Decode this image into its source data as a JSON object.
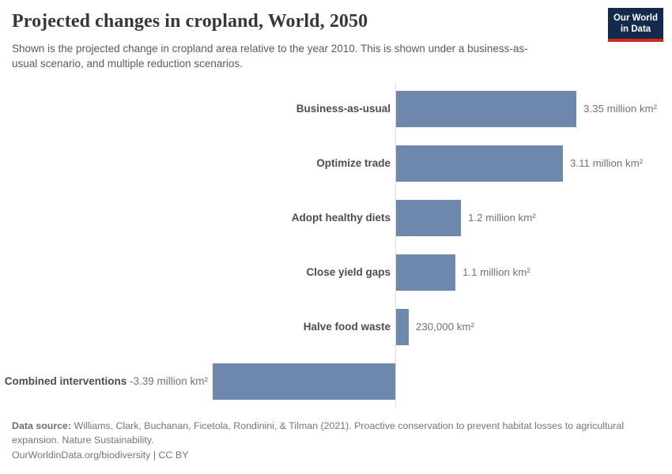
{
  "header": {
    "title": "Projected changes in cropland, World, 2050",
    "subtitle": "Shown is the projected change in cropland area relative to the year 2010. This is shown under a business-as-usual scenario, and multiple reduction scenarios.",
    "logo": {
      "line1": "Our World",
      "line2": "in Data"
    }
  },
  "chart_data": {
    "type": "bar",
    "orientation": "horizontal",
    "title": "Projected changes in cropland, World, 2050",
    "unit": "million km²",
    "baseline": 0,
    "xlim": [
      -3.39,
      3.35
    ],
    "grid": false,
    "legend": "none",
    "categories": [
      "Business-as-usual",
      "Optimize trade",
      "Adopt healthy diets",
      "Close yield gaps",
      "Halve food waste",
      "Combined interventions"
    ],
    "values": [
      3.35,
      3.11,
      1.2,
      1.1,
      0.23,
      -3.39
    ],
    "value_labels": [
      "3.35 million km²",
      "3.11 million km²",
      "1.2 million km²",
      "1.1 million km²",
      "230,000 km²",
      "-3.39 million km²"
    ],
    "colors": {
      "bar": "#6e88ad",
      "axis": "#dcdcdc",
      "category_label": "#4d4d4d",
      "value_label": "#737373"
    }
  },
  "footer": {
    "source_label": "Data source:",
    "source_text": " Williams, Clark, Buchanan, Ficetola, Rondinini, & Tilman (2021). Proactive conservation to prevent habitat losses to agricultural expansion. Nature Sustainability.",
    "credit": "OurWorldinData.org/biodiversity | CC BY"
  },
  "brand": {
    "navy": "#122a4e",
    "red": "#d3251c"
  }
}
